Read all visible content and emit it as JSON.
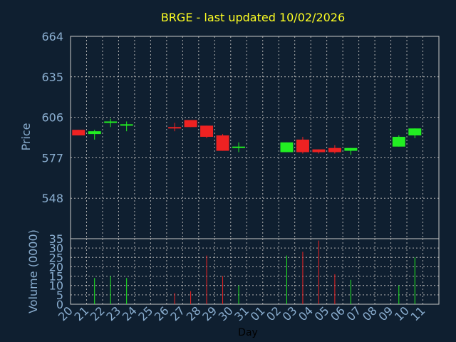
{
  "chart_data": [
    {
      "type": "candlestick",
      "title": "BRGE - last updated 10/02/2026",
      "ylabel": "Price",
      "ylim": [
        519,
        664
      ],
      "yticks": [
        "664",
        "635",
        "606",
        "577",
        "548"
      ],
      "ytick_values": [
        664,
        635,
        606,
        577,
        548
      ],
      "grid": true,
      "candles": [
        {
          "day": "20",
          "open": 597,
          "close": 593,
          "high": 597,
          "low": 593
        },
        {
          "day": "21",
          "open": 594,
          "close": 596,
          "high": 597,
          "low": 590
        },
        {
          "day": "22",
          "open": 602,
          "close": 603,
          "high": 605,
          "low": 599
        },
        {
          "day": "23",
          "open": 600,
          "close": 601,
          "high": 603,
          "low": 596
        },
        {
          "day": "26",
          "open": 599,
          "close": 598,
          "high": 602,
          "low": 596
        },
        {
          "day": "27",
          "open": 604,
          "close": 599,
          "high": 604,
          "low": 599
        },
        {
          "day": "28",
          "open": 600,
          "close": 592,
          "high": 600,
          "low": 591
        },
        {
          "day": "29",
          "open": 593,
          "close": 582,
          "high": 594,
          "low": 582
        },
        {
          "day": "30",
          "open": 584,
          "close": 585,
          "high": 588,
          "low": 581
        },
        {
          "day": "02",
          "open": 581,
          "close": 588,
          "high": 588,
          "low": 581
        },
        {
          "day": "03",
          "open": 590,
          "close": 581,
          "high": 592,
          "low": 580
        },
        {
          "day": "04",
          "open": 583,
          "close": 581,
          "high": 583,
          "low": 580
        },
        {
          "day": "05",
          "open": 584,
          "close": 581,
          "high": 586,
          "low": 580
        },
        {
          "day": "06",
          "open": 582,
          "close": 584,
          "high": 584,
          "low": 579
        },
        {
          "day": "09",
          "open": 585,
          "close": 592,
          "high": 593,
          "low": 585
        },
        {
          "day": "10",
          "open": 593,
          "close": 598,
          "high": 598,
          "low": 591
        }
      ]
    },
    {
      "type": "bar",
      "xlabel": "Day",
      "ylabel": "Volume (0000)",
      "ylim": [
        0,
        35
      ],
      "yticks": [
        "35",
        "30",
        "25",
        "20",
        "15",
        "10",
        "5",
        "0"
      ],
      "ytick_values": [
        35,
        30,
        25,
        20,
        15,
        10,
        5,
        0
      ],
      "categories": [
        "20",
        "21",
        "22",
        "23",
        "24",
        "25",
        "26",
        "27",
        "28",
        "29",
        "30",
        "31",
        "01",
        "02",
        "03",
        "04",
        "05",
        "06",
        "07",
        "08",
        "09",
        "10",
        "11"
      ],
      "bars": [
        {
          "day": "21",
          "value": 14,
          "color": "#22ee22"
        },
        {
          "day": "22",
          "value": 15,
          "color": "#22ee22"
        },
        {
          "day": "23",
          "value": 14,
          "color": "#22ee22"
        },
        {
          "day": "26",
          "value": 6,
          "color": "#ee2222"
        },
        {
          "day": "27",
          "value": 7,
          "color": "#ee2222"
        },
        {
          "day": "28",
          "value": 26,
          "color": "#ee2222"
        },
        {
          "day": "29",
          "value": 15,
          "color": "#ee2222"
        },
        {
          "day": "30",
          "value": 10,
          "color": "#22ee22"
        },
        {
          "day": "02",
          "value": 26,
          "color": "#22ee22"
        },
        {
          "day": "03",
          "value": 28,
          "color": "#ee2222"
        },
        {
          "day": "04",
          "value": 34,
          "color": "#ee2222"
        },
        {
          "day": "05",
          "value": 16,
          "color": "#ee2222"
        },
        {
          "day": "06",
          "value": 13,
          "color": "#22ee22"
        },
        {
          "day": "09",
          "value": 10,
          "color": "#22ee22"
        },
        {
          "day": "10",
          "value": 25,
          "color": "#22ee22"
        }
      ]
    }
  ],
  "colors": {
    "background": "#0f1f30",
    "up": "#22ee22",
    "down": "#ee2222",
    "title": "#ffff22",
    "text": "#8aaed0",
    "grid": "#b0b0b0",
    "frame": "#c8c8c8"
  }
}
